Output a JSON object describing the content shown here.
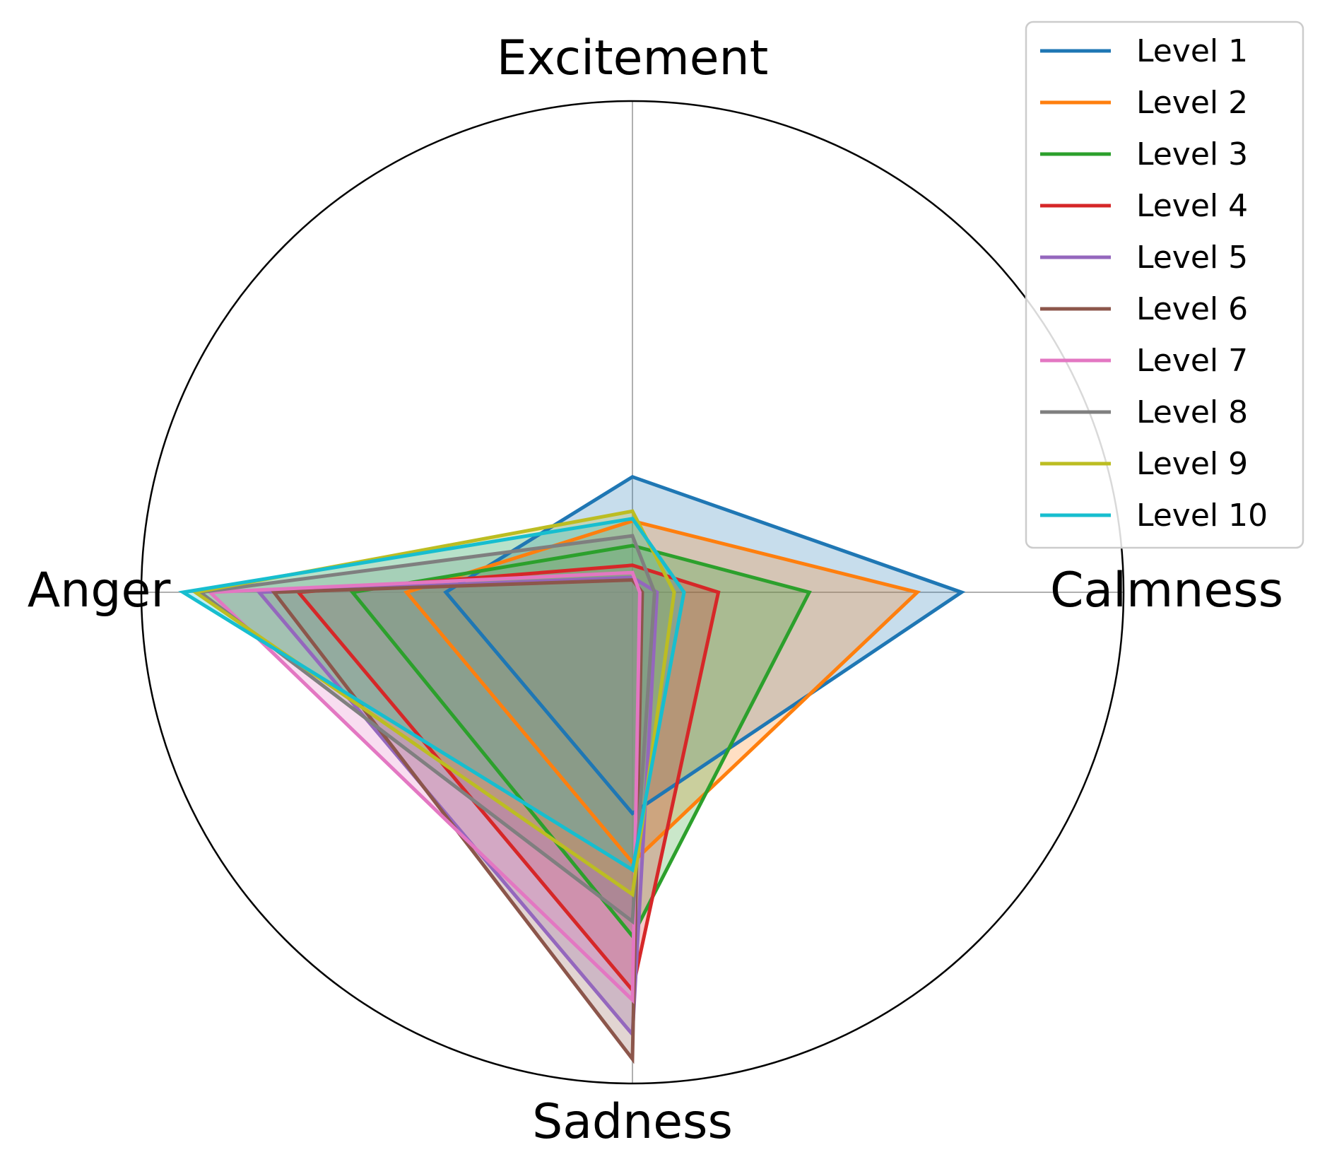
{
  "chart_data": {
    "type": "radar",
    "axes": [
      "Excitement",
      "Calmness",
      "Sadness",
      "Anger"
    ],
    "range": [
      0,
      1
    ],
    "grid": false,
    "legend": "top-right",
    "series": [
      {
        "name": "Level 1",
        "color": "#1f77b4",
        "values": [
          0.235,
          0.67,
          0.45,
          0.38
        ]
      },
      {
        "name": "Level 2",
        "color": "#ff7f0e",
        "values": [
          0.145,
          0.58,
          0.55,
          0.46
        ]
      },
      {
        "name": "Level 3",
        "color": "#2ca02c",
        "values": [
          0.095,
          0.36,
          0.7,
          0.57
        ]
      },
      {
        "name": "Level 4",
        "color": "#d62728",
        "values": [
          0.055,
          0.175,
          0.81,
          0.68
        ]
      },
      {
        "name": "Level 5",
        "color": "#9467bd",
        "values": [
          0.03,
          0.05,
          0.9,
          0.76
        ]
      },
      {
        "name": "Level 6",
        "color": "#8c564b",
        "values": [
          0.025,
          0.02,
          0.95,
          0.73
        ]
      },
      {
        "name": "Level 7",
        "color": "#e377c2",
        "values": [
          0.04,
          0.015,
          0.83,
          0.86
        ]
      },
      {
        "name": "Level 8",
        "color": "#7f7f7f",
        "values": [
          0.115,
          0.045,
          0.67,
          0.88
        ]
      },
      {
        "name": "Level 9",
        "color": "#bcbd22",
        "values": [
          0.165,
          0.085,
          0.615,
          0.89
        ]
      },
      {
        "name": "Level 10",
        "color": "#17becf",
        "values": [
          0.15,
          0.105,
          0.565,
          0.915
        ]
      }
    ]
  }
}
